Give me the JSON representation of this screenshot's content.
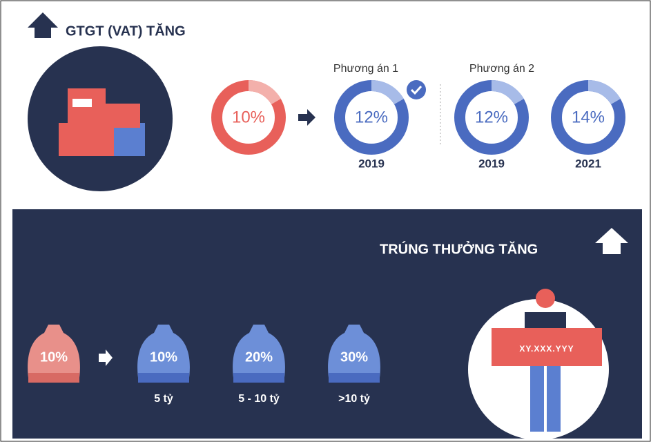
{
  "vat": {
    "title": "GTGT (VAT) TĂNG",
    "current": "10%",
    "options": [
      {
        "label": "Phương án 1",
        "items": [
          {
            "value": "12%",
            "year": "2019"
          }
        ]
      },
      {
        "label": "Phương án 2",
        "items": [
          {
            "value": "12%",
            "year": "2019"
          },
          {
            "value": "14%",
            "year": "2021"
          }
        ]
      }
    ]
  },
  "prize": {
    "title": "TRÚNG THƯỞNG TĂNG",
    "current": "10%",
    "tiers": [
      {
        "value": "10%",
        "label": "5 tỷ"
      },
      {
        "value": "20%",
        "label": "5 - 10 tỷ"
      },
      {
        "value": "30%",
        "label": ">10 tỷ"
      }
    ],
    "ticket": "XY.XXX.YYY"
  }
}
